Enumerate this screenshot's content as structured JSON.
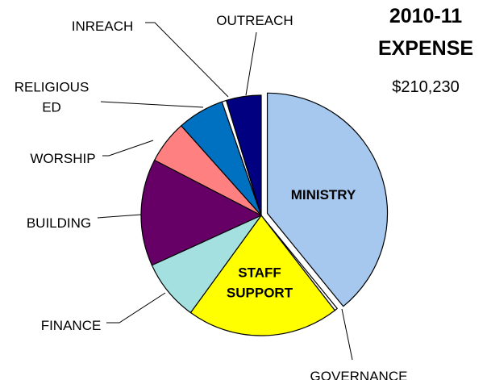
{
  "chart_data": {
    "type": "pie",
    "title": "2010-11 EXPENSE",
    "title_lines": [
      "2010-11",
      "EXPENSE"
    ],
    "total": "$210,230",
    "start_angle_deg": 0,
    "direction": "clockwise",
    "slices": [
      {
        "key": "ministry",
        "label": "MINISTRY",
        "label_lines": [
          "MINISTRY"
        ],
        "value": 39.1,
        "color": "#a6c8ee",
        "exploded": true,
        "label_inside": true
      },
      {
        "key": "governance",
        "label": "GOVERNANCE",
        "label_lines": [
          "GOVERNANCE"
        ],
        "value": 0.4,
        "color": "#ffffff",
        "exploded": false,
        "label_inside": false
      },
      {
        "key": "staff-support",
        "label": "STAFF SUPPORT",
        "label_lines": [
          "STAFF",
          "SUPPORT"
        ],
        "value": 20.5,
        "color": "#ffff00",
        "exploded": false,
        "label_inside": true
      },
      {
        "key": "finance",
        "label": "FINANCE",
        "label_lines": [
          "FINANCE"
        ],
        "value": 8.2,
        "color": "#a5e0e0",
        "exploded": false,
        "label_inside": false
      },
      {
        "key": "building",
        "label": "BUILDING",
        "label_lines": [
          "BUILDING"
        ],
        "value": 14.4,
        "color": "#660066",
        "exploded": false,
        "label_inside": false
      },
      {
        "key": "worship",
        "label": "WORSHIP",
        "label_lines": [
          "WORSHIP"
        ],
        "value": 5.8,
        "color": "#ff8080",
        "exploded": false,
        "label_inside": false
      },
      {
        "key": "religious-ed",
        "label": "RELIGIOUS ED",
        "label_lines": [
          "RELIGIOUS",
          "ED"
        ],
        "value": 6.3,
        "color": "#0070c0",
        "exploded": false,
        "label_inside": false
      },
      {
        "key": "inreach",
        "label": "INREACH",
        "label_lines": [
          "INREACH"
        ],
        "value": 0.6,
        "color": "#ffffff",
        "exploded": false,
        "label_inside": false
      },
      {
        "key": "outreach",
        "label": "OUTREACH",
        "label_lines": [
          "OUTREACH"
        ],
        "value": 4.7,
        "color": "#000080",
        "exploded": false,
        "label_inside": false
      }
    ]
  }
}
